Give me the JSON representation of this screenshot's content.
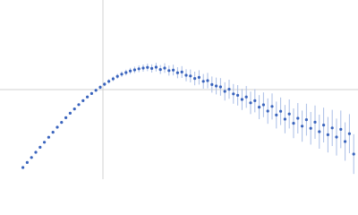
{
  "chart_data": {
    "type": "scatter",
    "xlim": [
      0,
      100
    ],
    "ylim": [
      0,
      100
    ],
    "grid_x": [
      28.75
    ],
    "grid_y": [
      50
    ],
    "color": "#3a64bd",
    "error_color": "#a9bde6",
    "x": [
      6.4,
      7.6,
      8.8,
      10.0,
      11.2,
      12.4,
      13.6,
      14.8,
      16.0,
      17.2,
      18.4,
      19.6,
      20.8,
      22.0,
      23.2,
      24.4,
      25.6,
      26.8,
      28.0,
      29.2,
      30.4,
      31.6,
      32.8,
      34.0,
      35.2,
      36.4,
      37.6,
      38.8,
      40.0,
      41.2,
      42.4,
      43.6,
      44.8,
      46.0,
      47.2,
      48.4,
      49.6,
      50.8,
      52.0,
      53.2,
      54.4,
      55.6,
      56.8,
      58.0,
      59.2,
      60.4,
      61.6,
      62.8,
      64.0,
      65.2,
      66.4,
      67.6,
      68.8,
      70.0,
      71.2,
      72.4,
      73.6,
      74.8,
      76.0,
      77.2,
      78.4,
      79.6,
      80.8,
      82.0,
      83.2,
      84.4,
      85.6,
      86.8,
      88.0,
      89.2,
      90.4,
      91.6,
      92.8,
      94.0,
      95.2,
      96.4,
      97.6,
      98.8
    ],
    "values": [
      6.5,
      9.3,
      12.1,
      15.0,
      17.8,
      20.6,
      23.4,
      26.2,
      29.0,
      31.7,
      34.3,
      36.8,
      39.2,
      41.6,
      43.8,
      45.9,
      47.8,
      49.6,
      51.3,
      53.0,
      54.6,
      56.0,
      57.4,
      58.6,
      59.5,
      60.4,
      61.0,
      61.6,
      62.0,
      62.4,
      61.8,
      62.5,
      61.2,
      62.0,
      60.6,
      60.9,
      59.4,
      59.8,
      58.0,
      57.6,
      56.2,
      56.8,
      54.6,
      55.0,
      52.8,
      52.0,
      51.5,
      49.0,
      50.2,
      47.6,
      46.8,
      44.5,
      45.9,
      42.6,
      43.8,
      40.2,
      41.5,
      38.0,
      40.6,
      35.8,
      37.9,
      33.5,
      36.4,
      31.2,
      34.0,
      29.6,
      33.2,
      28.4,
      31.8,
      26.5,
      30.2,
      24.8,
      28.6,
      23.5,
      27.8,
      21.0,
      25.4,
      14.0
    ],
    "errors": [
      0.3,
      0.3,
      0.3,
      0.3,
      0.3,
      0.4,
      0.4,
      0.4,
      0.4,
      0.5,
      0.5,
      0.5,
      0.6,
      0.6,
      0.7,
      0.7,
      0.8,
      0.9,
      1.0,
      1.1,
      1.2,
      1.3,
      1.4,
      1.5,
      1.6,
      1.7,
      1.8,
      1.9,
      2.0,
      2.1,
      2.3,
      2.4,
      2.5,
      2.7,
      2.8,
      3.0,
      3.1,
      3.3,
      3.4,
      3.6,
      3.8,
      4.0,
      4.1,
      4.3,
      4.5,
      4.7,
      4.9,
      5.1,
      5.3,
      5.5,
      5.7,
      5.9,
      6.1,
      6.3,
      6.5,
      6.7,
      6.9,
      7.1,
      7.3,
      7.5,
      7.7,
      7.9,
      8.1,
      8.3,
      8.5,
      8.7,
      8.9,
      9.1,
      9.3,
      9.5,
      9.7,
      9.9,
      10.1,
      10.3,
      10.5,
      10.7,
      10.9,
      11.1
    ]
  }
}
